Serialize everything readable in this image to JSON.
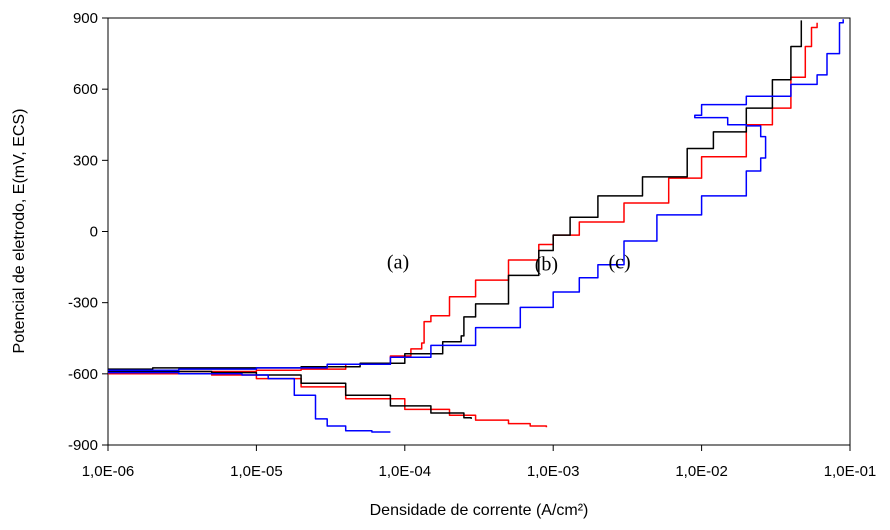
{
  "chart_data": {
    "type": "line",
    "title": "",
    "xlabel": "Densidade de corrente (A/cm²)",
    "ylabel": "Potencial de eletrodo, E(mV, ECS)",
    "x_scale": "log",
    "xlim": [
      1e-06,
      0.1
    ],
    "ylim": [
      -900,
      900
    ],
    "x_ticks": [
      1e-06,
      1e-05,
      0.0001,
      0.001,
      0.01,
      0.1
    ],
    "x_tick_labels": [
      "1,0E-06",
      "1,0E-05",
      "1,0E-04",
      "1,0E-03",
      "1,0E-02",
      "1,0E-01"
    ],
    "y_ticks": [
      900,
      600,
      300,
      0,
      -300,
      -600,
      -900
    ],
    "y_tick_labels": [
      "900",
      "600",
      "300",
      "0",
      "-300",
      "-600",
      "-900"
    ],
    "grid": false,
    "legend": "none",
    "annotations": [
      {
        "text": "(a)",
        "x": 9e-05,
        "y": -155
      },
      {
        "text": "(b)",
        "x": 0.0009,
        "y": -165
      },
      {
        "text": "(c)",
        "x": 0.0028,
        "y": -155
      }
    ],
    "series": [
      {
        "color": "#ff0000",
        "cathodic": [
          [
            1e-06,
            -600
          ],
          [
            2e-06,
            -600
          ],
          [
            5e-06,
            -605
          ],
          [
            1e-05,
            -620
          ],
          [
            2e-05,
            -655
          ],
          [
            4e-05,
            -705
          ],
          [
            0.0001,
            -750
          ],
          [
            0.0002,
            -775
          ],
          [
            0.0003,
            -795
          ],
          [
            0.0005,
            -810
          ],
          [
            0.0007,
            -820
          ],
          [
            0.0009,
            -825
          ]
        ],
        "anodic": [
          [
            1e-06,
            -590
          ],
          [
            3e-06,
            -590
          ],
          [
            1e-05,
            -585
          ],
          [
            2e-05,
            -580
          ],
          [
            4e-05,
            -560
          ],
          [
            8e-05,
            -525
          ],
          [
            0.00011,
            -495
          ],
          [
            0.00013,
            -470
          ],
          [
            0.000135,
            -380
          ],
          [
            0.00015,
            -355
          ],
          [
            0.0002,
            -275
          ],
          [
            0.0003,
            -205
          ],
          [
            0.0005,
            -120
          ],
          [
            0.0008,
            -55
          ],
          [
            0.001,
            -15
          ],
          [
            0.0015,
            40
          ],
          [
            0.003,
            120
          ],
          [
            0.006,
            225
          ],
          [
            0.01,
            315
          ],
          [
            0.02,
            450
          ],
          [
            0.03,
            520
          ],
          [
            0.04,
            650
          ],
          [
            0.05,
            780
          ],
          [
            0.055,
            860
          ],
          [
            0.06,
            880
          ]
        ]
      },
      {
        "color": "#000000",
        "cathodic": [
          [
            1e-06,
            -590
          ],
          [
            2e-06,
            -590
          ],
          [
            5e-06,
            -595
          ],
          [
            1e-05,
            -605
          ],
          [
            2e-05,
            -640
          ],
          [
            4e-05,
            -690
          ],
          [
            8e-05,
            -735
          ],
          [
            0.00015,
            -765
          ],
          [
            0.00025,
            -785
          ],
          [
            0.00028,
            -790
          ]
        ],
        "anodic": [
          [
            1e-06,
            -580
          ],
          [
            2e-06,
            -575
          ],
          [
            1e-05,
            -575
          ],
          [
            2e-05,
            -570
          ],
          [
            5e-05,
            -555
          ],
          [
            0.0001,
            -515
          ],
          [
            0.00018,
            -465
          ],
          [
            0.00024,
            -440
          ],
          [
            0.00025,
            -360
          ],
          [
            0.0003,
            -305
          ],
          [
            0.0005,
            -185
          ],
          [
            0.0008,
            -80
          ],
          [
            0.001,
            -15
          ],
          [
            0.0013,
            60
          ],
          [
            0.002,
            150
          ],
          [
            0.004,
            230
          ],
          [
            0.008,
            350
          ],
          [
            0.012,
            420
          ],
          [
            0.02,
            520
          ],
          [
            0.03,
            640
          ],
          [
            0.04,
            780
          ],
          [
            0.047,
            890
          ]
        ]
      },
      {
        "color": "#0000ff",
        "cathodic": [
          [
            1e-06,
            -595
          ],
          [
            3e-06,
            -600
          ],
          [
            8e-06,
            -605
          ],
          [
            1.2e-05,
            -620
          ],
          [
            1.8e-05,
            -690
          ],
          [
            2.5e-05,
            -790
          ],
          [
            3e-05,
            -820
          ],
          [
            4e-05,
            -840
          ],
          [
            6e-05,
            -845
          ],
          [
            8e-05,
            -845
          ]
        ],
        "anodic": [
          [
            1e-06,
            -585
          ],
          [
            3e-06,
            -580
          ],
          [
            1e-05,
            -575
          ],
          [
            3e-05,
            -560
          ],
          [
            8e-05,
            -530
          ],
          [
            0.00015,
            -480
          ],
          [
            0.0003,
            -405
          ],
          [
            0.0006,
            -320
          ],
          [
            0.001,
            -255
          ],
          [
            0.0015,
            -195
          ],
          [
            0.002,
            -140
          ],
          [
            0.003,
            -40
          ],
          [
            0.005,
            70
          ],
          [
            0.01,
            150
          ],
          [
            0.02,
            255
          ],
          [
            0.025,
            310
          ],
          [
            0.027,
            400
          ],
          [
            0.025,
            445
          ],
          [
            0.02,
            450
          ],
          [
            0.015,
            480
          ],
          [
            0.011,
            480
          ],
          [
            0.009,
            490
          ],
          [
            0.01,
            535
          ],
          [
            0.02,
            570
          ],
          [
            0.04,
            620
          ],
          [
            0.06,
            660
          ],
          [
            0.07,
            750
          ],
          [
            0.085,
            880
          ],
          [
            0.09,
            895
          ]
        ]
      }
    ]
  }
}
